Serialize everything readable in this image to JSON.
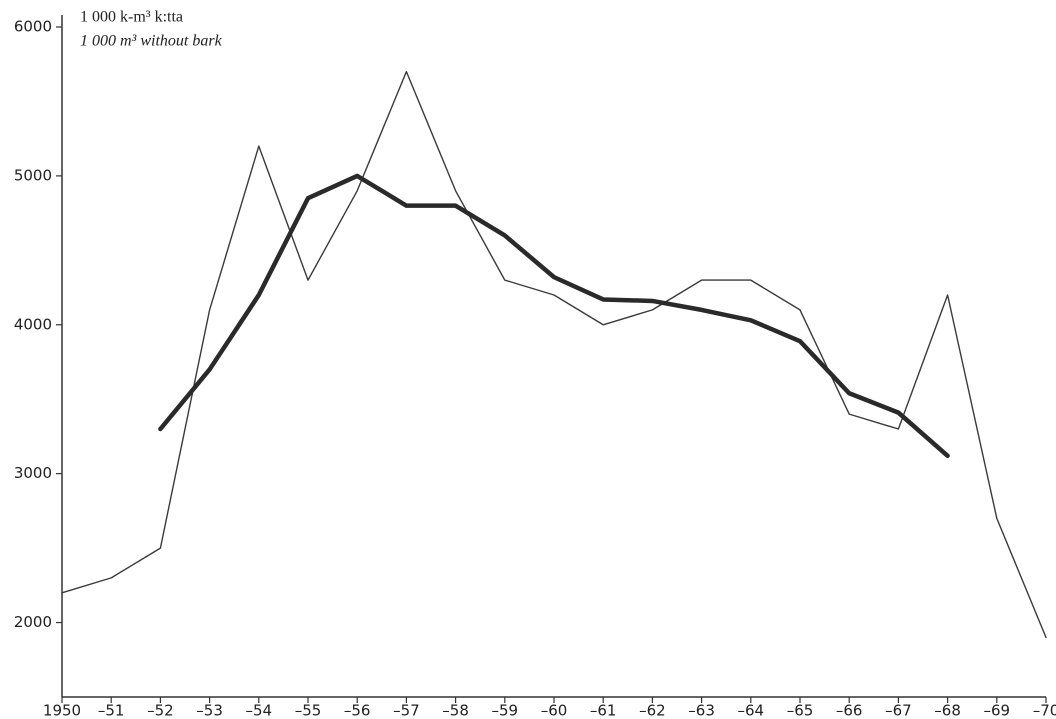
{
  "chart_data": {
    "type": "line",
    "y_label_lines": [
      "1 000 k-m³ k:tta",
      "1 000 m³ without bark"
    ],
    "categories": [
      "1950",
      "–51",
      "–52",
      "–53",
      "–54",
      "–55",
      "–56",
      "–57",
      "–58",
      "–59",
      "–60",
      "–61",
      "–62",
      "–63",
      "–64",
      "–65",
      "–66",
      "–67",
      "–68",
      "–69",
      "–70"
    ],
    "series": [
      {
        "color": "#3a3a3a",
        "width": 1.4,
        "values": [
          2200,
          2300,
          2500,
          4100,
          5200,
          4300,
          4900,
          5700,
          4900,
          4300,
          4200,
          4000,
          4100,
          4300,
          4300,
          4100,
          3400,
          3300,
          4200,
          2700,
          1900
        ]
      },
      {
        "color": "#2a2a2a",
        "width": 4.5,
        "values": [
          null,
          null,
          3300,
          3700,
          4200,
          4850,
          5000,
          4800,
          4800,
          4600,
          4320,
          4170,
          4160,
          4100,
          4030,
          3890,
          3540,
          3410,
          3120,
          null,
          null
        ]
      }
    ],
    "ylim": [
      1500,
      6000
    ],
    "yticks": [
      2000,
      3000,
      4000,
      5000,
      6000
    ],
    "grid": false
  }
}
